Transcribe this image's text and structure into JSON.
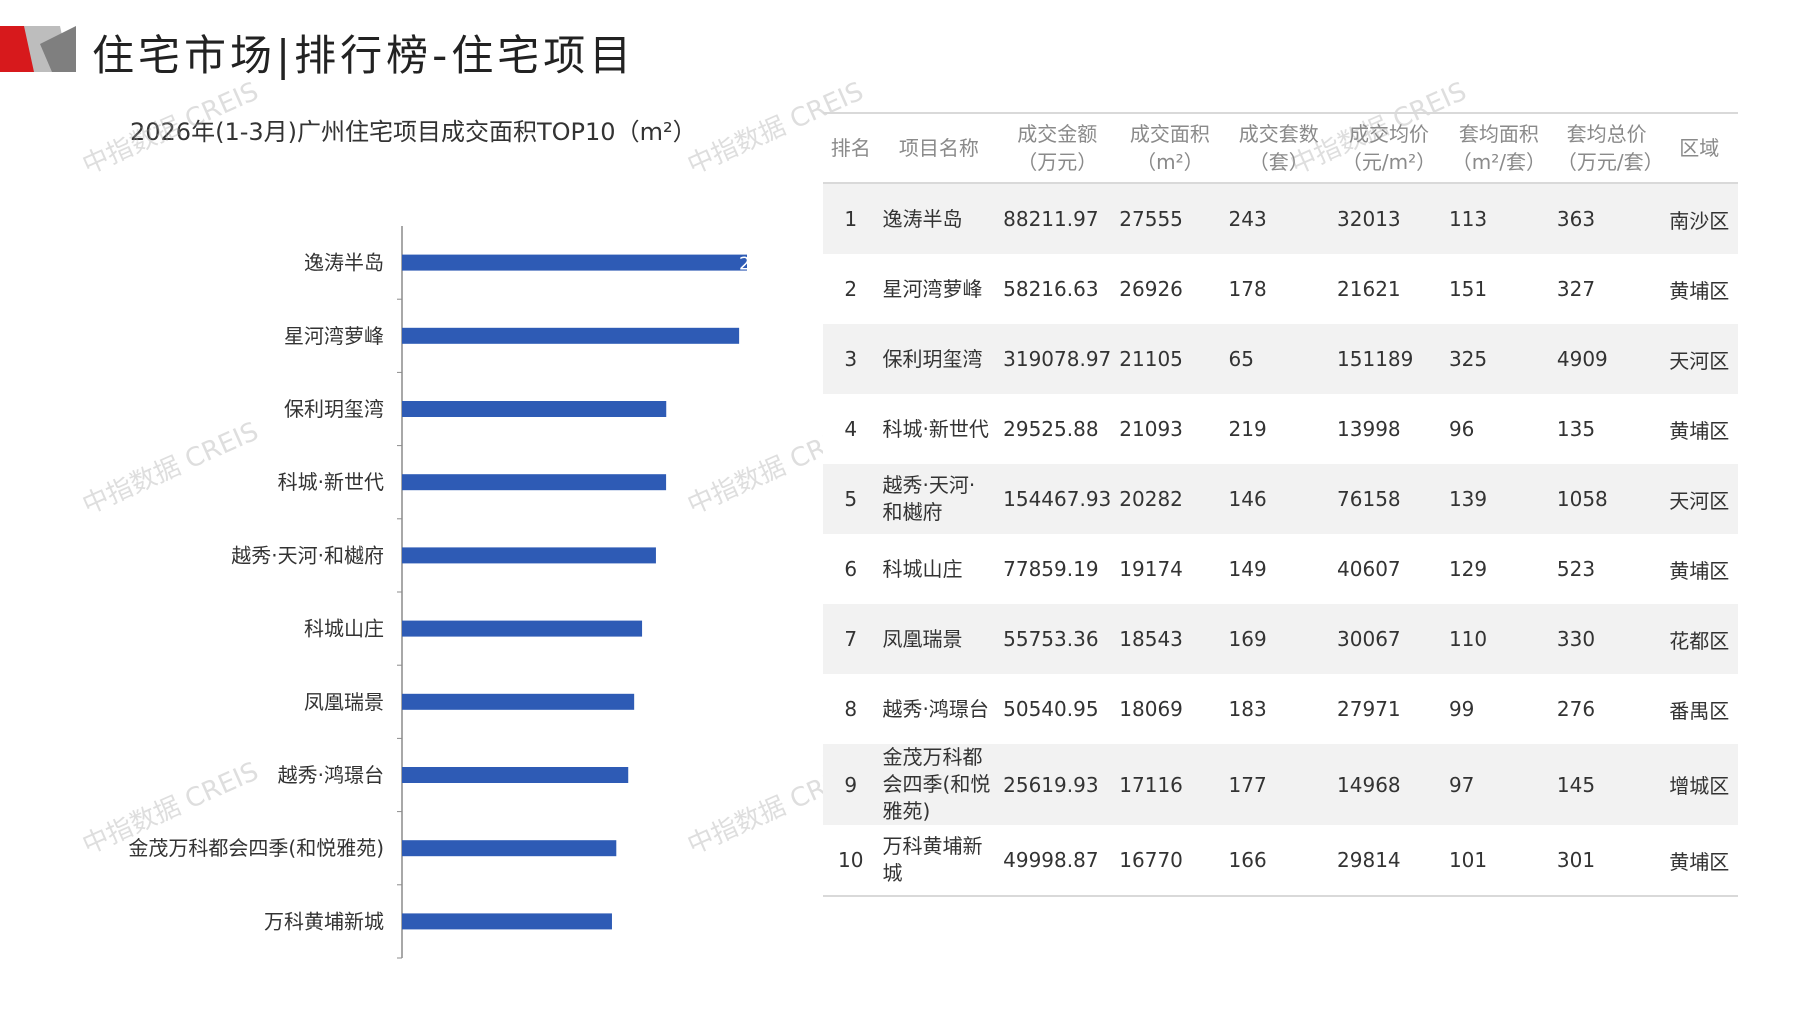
{
  "header": {
    "title": "住宅市场|排行榜-住宅项目"
  },
  "colors": {
    "brand_red": "#d7191c",
    "brand_gray": "#8c8c8c",
    "bar": "#2e5bb5",
    "row_stripe": "#f2f2f2"
  },
  "watermark": "中指数据 CREIS",
  "chart_data": {
    "type": "bar",
    "orientation": "horizontal",
    "title": "2026年(1-3月)广州住宅项目成交面积TOP10（m²）",
    "categories": [
      "逸涛半岛",
      "星河湾萝峰",
      "保利玥玺湾",
      "科城·新世代",
      "越秀·天河·和樾府",
      "科城山庄",
      "凤凰瑞景",
      "越秀·鸿璟台",
      "金茂万科都会四季(和悦雅苑)",
      "万科黄埔新城"
    ],
    "values": [
      27555,
      26926,
      21105,
      21093,
      20282,
      19174,
      18543,
      18069,
      17116,
      16770
    ],
    "xlim": [
      0,
      27555
    ],
    "grid": false,
    "legend": "none",
    "data_label_visible": "2"
  },
  "table": {
    "headers": [
      {
        "line1": "排名",
        "line2": ""
      },
      {
        "line1": "项目名称",
        "line2": ""
      },
      {
        "line1": "成交金额",
        "line2": "（万元）"
      },
      {
        "line1": "成交面积",
        "line2": "（m²）"
      },
      {
        "line1": "成交套数",
        "line2": "（套）"
      },
      {
        "line1": "成交均价",
        "line2": "（元/m²）"
      },
      {
        "line1": "套均面积",
        "line2": "（m²/套）"
      },
      {
        "line1": "套均总价",
        "line2": "（万元/套）"
      },
      {
        "line1": "区域",
        "line2": ""
      }
    ],
    "rows": [
      {
        "rank": "1",
        "name": "逸涛半岛",
        "amount": "88211.97",
        "area": "27555",
        "units": "243",
        "price": "32013",
        "avg_area": "113",
        "avg_total": "363",
        "district": "南沙区"
      },
      {
        "rank": "2",
        "name": "星河湾萝峰",
        "amount": "58216.63",
        "area": "26926",
        "units": "178",
        "price": "21621",
        "avg_area": "151",
        "avg_total": "327",
        "district": "黄埔区"
      },
      {
        "rank": "3",
        "name": "保利玥玺湾",
        "amount": "319078.97",
        "area": "21105",
        "units": "65",
        "price": "151189",
        "avg_area": "325",
        "avg_total": "4909",
        "district": "天河区"
      },
      {
        "rank": "4",
        "name": "科城·新世代",
        "amount": "29525.88",
        "area": "21093",
        "units": "219",
        "price": "13998",
        "avg_area": "96",
        "avg_total": "135",
        "district": "黄埔区"
      },
      {
        "rank": "5",
        "name": "越秀·天河·和樾府",
        "amount": "154467.93",
        "area": "20282",
        "units": "146",
        "price": "76158",
        "avg_area": "139",
        "avg_total": "1058",
        "district": "天河区"
      },
      {
        "rank": "6",
        "name": "科城山庄",
        "amount": "77859.19",
        "area": "19174",
        "units": "149",
        "price": "40607",
        "avg_area": "129",
        "avg_total": "523",
        "district": "黄埔区"
      },
      {
        "rank": "7",
        "name": "凤凰瑞景",
        "amount": "55753.36",
        "area": "18543",
        "units": "169",
        "price": "30067",
        "avg_area": "110",
        "avg_total": "330",
        "district": "花都区"
      },
      {
        "rank": "8",
        "name": "越秀·鸿璟台",
        "amount": "50540.95",
        "area": "18069",
        "units": "183",
        "price": "27971",
        "avg_area": "99",
        "avg_total": "276",
        "district": "番禺区"
      },
      {
        "rank": "9",
        "name": "金茂万科都会四季(和悦雅苑)",
        "amount": "25619.93",
        "area": "17116",
        "units": "177",
        "price": "14968",
        "avg_area": "97",
        "avg_total": "145",
        "district": "增城区"
      },
      {
        "rank": "10",
        "name": "万科黄埔新城",
        "amount": "49998.87",
        "area": "16770",
        "units": "166",
        "price": "29814",
        "avg_area": "101",
        "avg_total": "301",
        "district": "黄埔区"
      }
    ]
  }
}
